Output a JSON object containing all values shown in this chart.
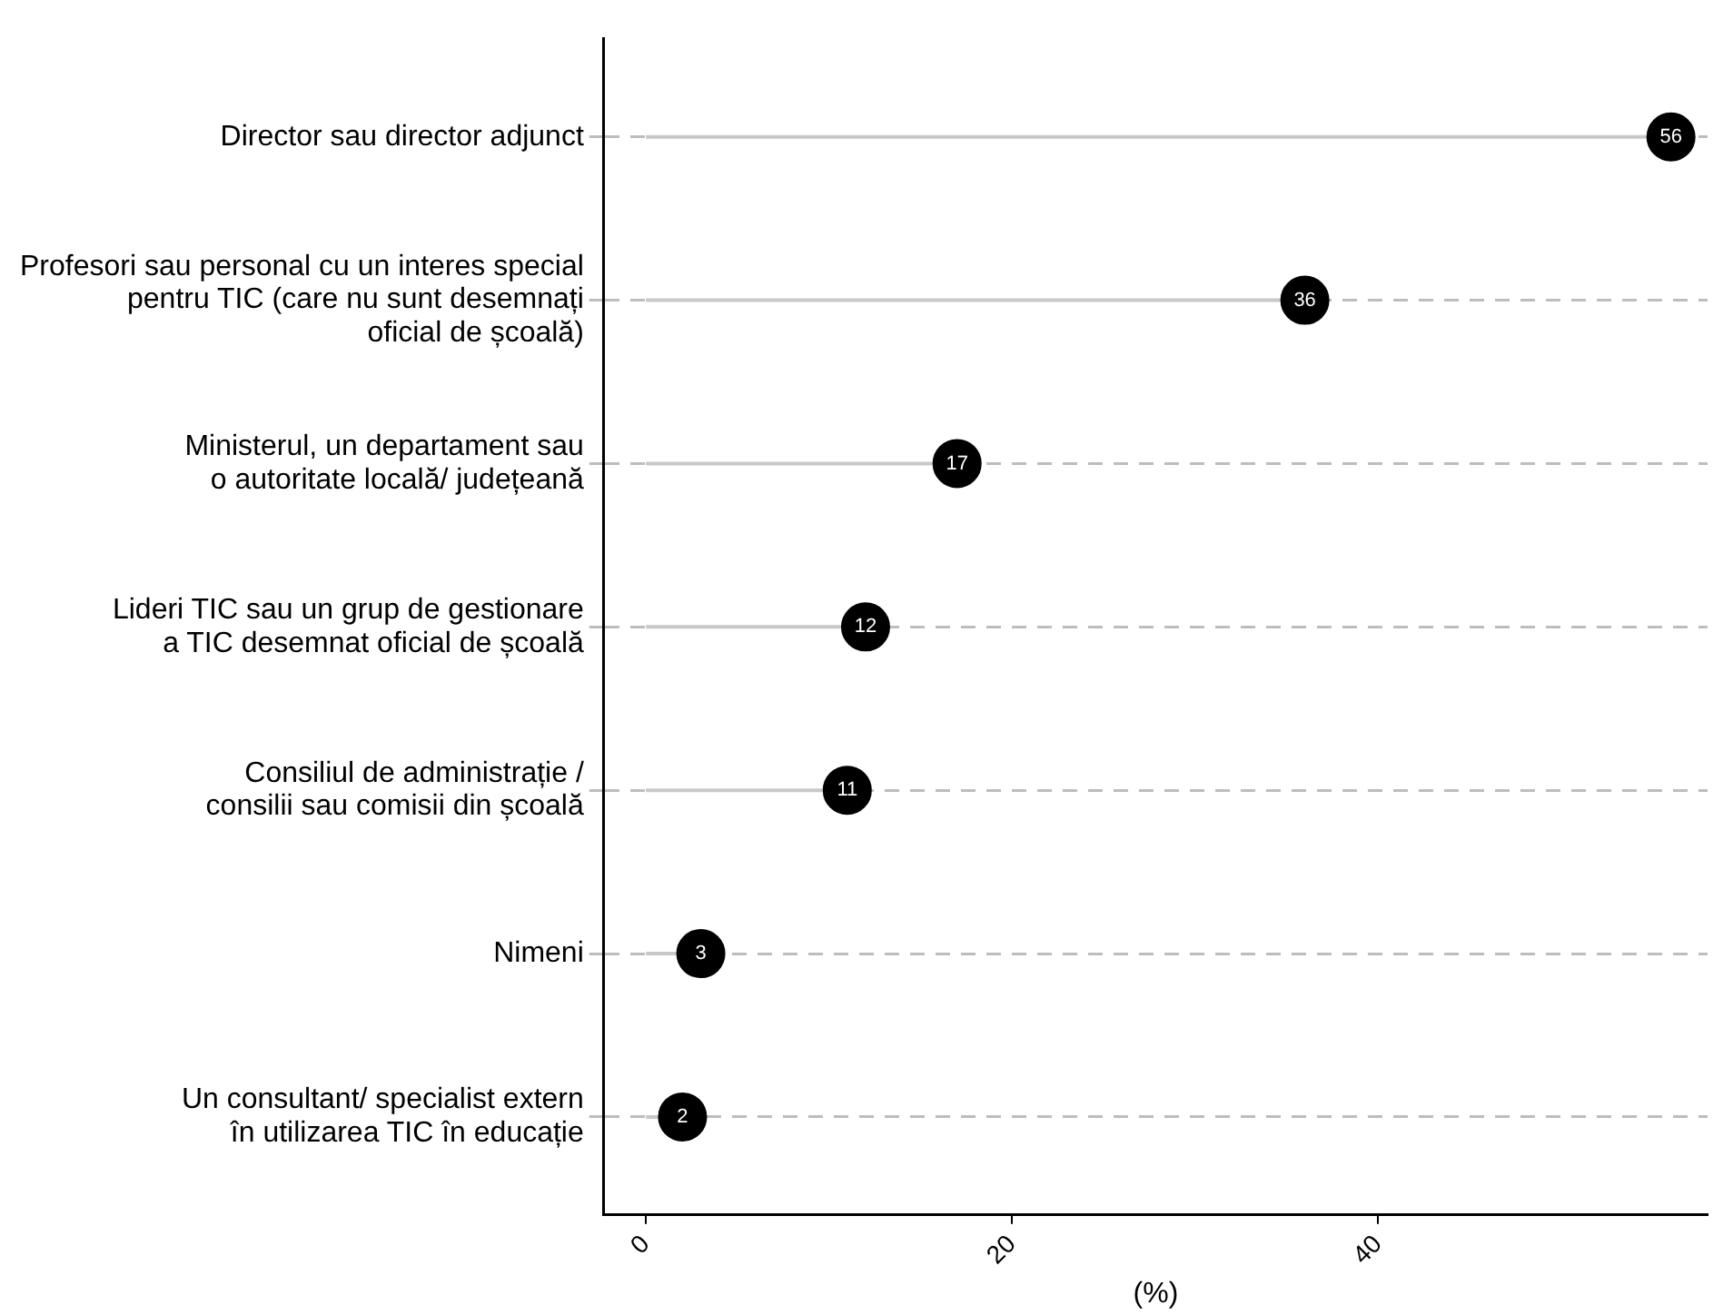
{
  "chart_data": {
    "type": "lollipop",
    "orientation": "horizontal",
    "xlabel": "(%)",
    "categories": [
      "Director sau director adjunct",
      "Profesori sau personal cu un interes special\npentru TIC (care nu sunt desemnați\noficial de școală)",
      "Ministerul, un departament sau\no autoritate locală/ județeană",
      "Lideri TIC sau un grup de gestionare\na TIC desemnat oficial de școală",
      "Consiliul de administrație /\nconsilii sau comisii din școală",
      "Nimeni",
      "Un consultant/ specialist extern\nîn utilizarea TIC în educație"
    ],
    "values": [
      56,
      36,
      17,
      12,
      11,
      3,
      2
    ],
    "color": "#000000",
    "data_labels": true,
    "grid": "y",
    "legend": false,
    "marker": "circle",
    "xlim": [
      -2.3,
      58
    ],
    "xticks": [
      0,
      20,
      40
    ]
  }
}
